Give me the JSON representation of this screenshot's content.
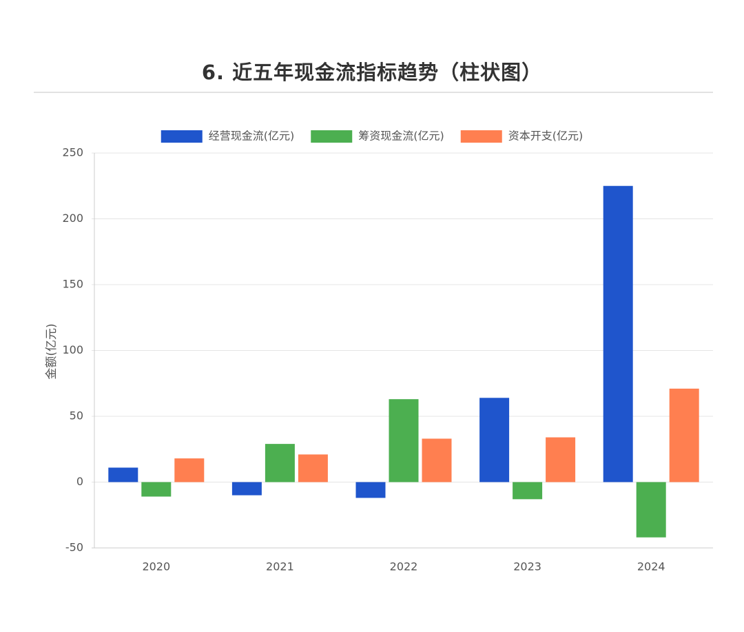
{
  "page": {
    "title": "6. 近五年现金流指标趋势（柱状图）"
  },
  "chart_data": {
    "type": "bar",
    "title": "",
    "xlabel": "",
    "ylabel": "金额(亿元)",
    "categories": [
      "2020",
      "2021",
      "2022",
      "2023",
      "2024"
    ],
    "ylim": [
      -50,
      250
    ],
    "yticks": [
      "250",
      "200",
      "150",
      "100",
      "50",
      "0",
      "-50"
    ],
    "grid": true,
    "legend_position": "top-center",
    "series": [
      {
        "name": "经营现金流(亿元)",
        "color": "#1f55cc",
        "values": [
          11,
          -10,
          -12,
          64,
          225
        ]
      },
      {
        "name": "筹资现金流(亿元)",
        "color": "#4caf50",
        "values": [
          -11,
          29,
          63,
          -13,
          -42
        ]
      },
      {
        "name": "资本开支(亿元)",
        "color": "#ff7f50",
        "values": [
          18,
          21,
          33,
          34,
          71
        ]
      }
    ]
  }
}
